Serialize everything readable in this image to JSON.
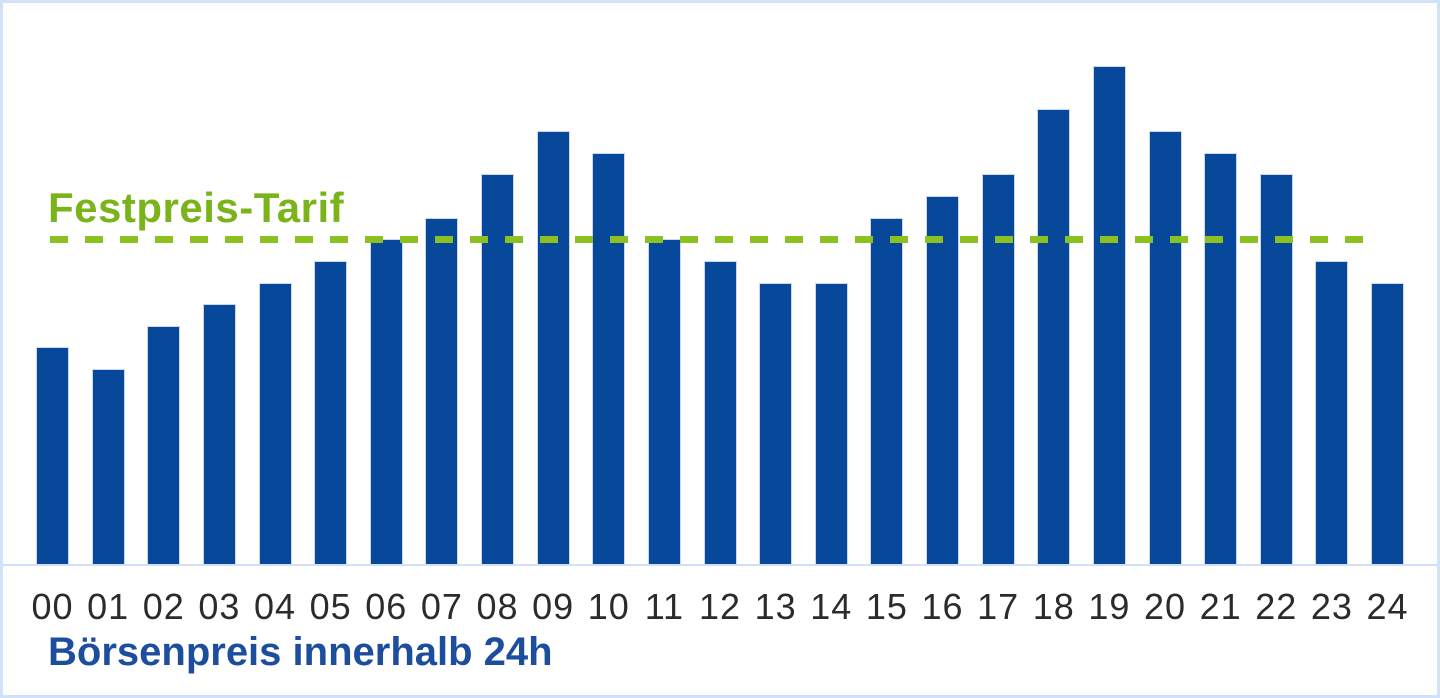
{
  "chart_data": {
    "type": "bar",
    "title": "Börsenpreis innerhalb 24h",
    "xlabel": "Börsenpreis innerhalb 24h",
    "ylabel": "",
    "categories": [
      "00",
      "01",
      "02",
      "03",
      "04",
      "05",
      "06",
      "07",
      "08",
      "09",
      "10",
      "11",
      "12",
      "13",
      "14",
      "15",
      "16",
      "17",
      "18",
      "19",
      "20",
      "21",
      "22",
      "23",
      "24"
    ],
    "series": [
      {
        "name": "Börsenpreis",
        "values": [
          10,
          9,
          11,
          12,
          13,
          14,
          15,
          16,
          18,
          20,
          19,
          15,
          14,
          13,
          13,
          16,
          17,
          18,
          21,
          23,
          20,
          19,
          18,
          14,
          13
        ]
      }
    ],
    "threshold": {
      "label": "Festpreis-Tarif",
      "value": 15
    },
    "ylim": [
      0,
      26
    ],
    "grid": false,
    "legend_position": "none",
    "colors": {
      "bar": "#07489a",
      "threshold_line": "#8cc122",
      "threshold_text": "#7ab31a",
      "axis_title": "#1d4e9e",
      "tick_label": "#2b2b2b",
      "baseline": "#cfe0f8",
      "frame_border": "#d0e1fa",
      "background": "#ffffff"
    }
  }
}
